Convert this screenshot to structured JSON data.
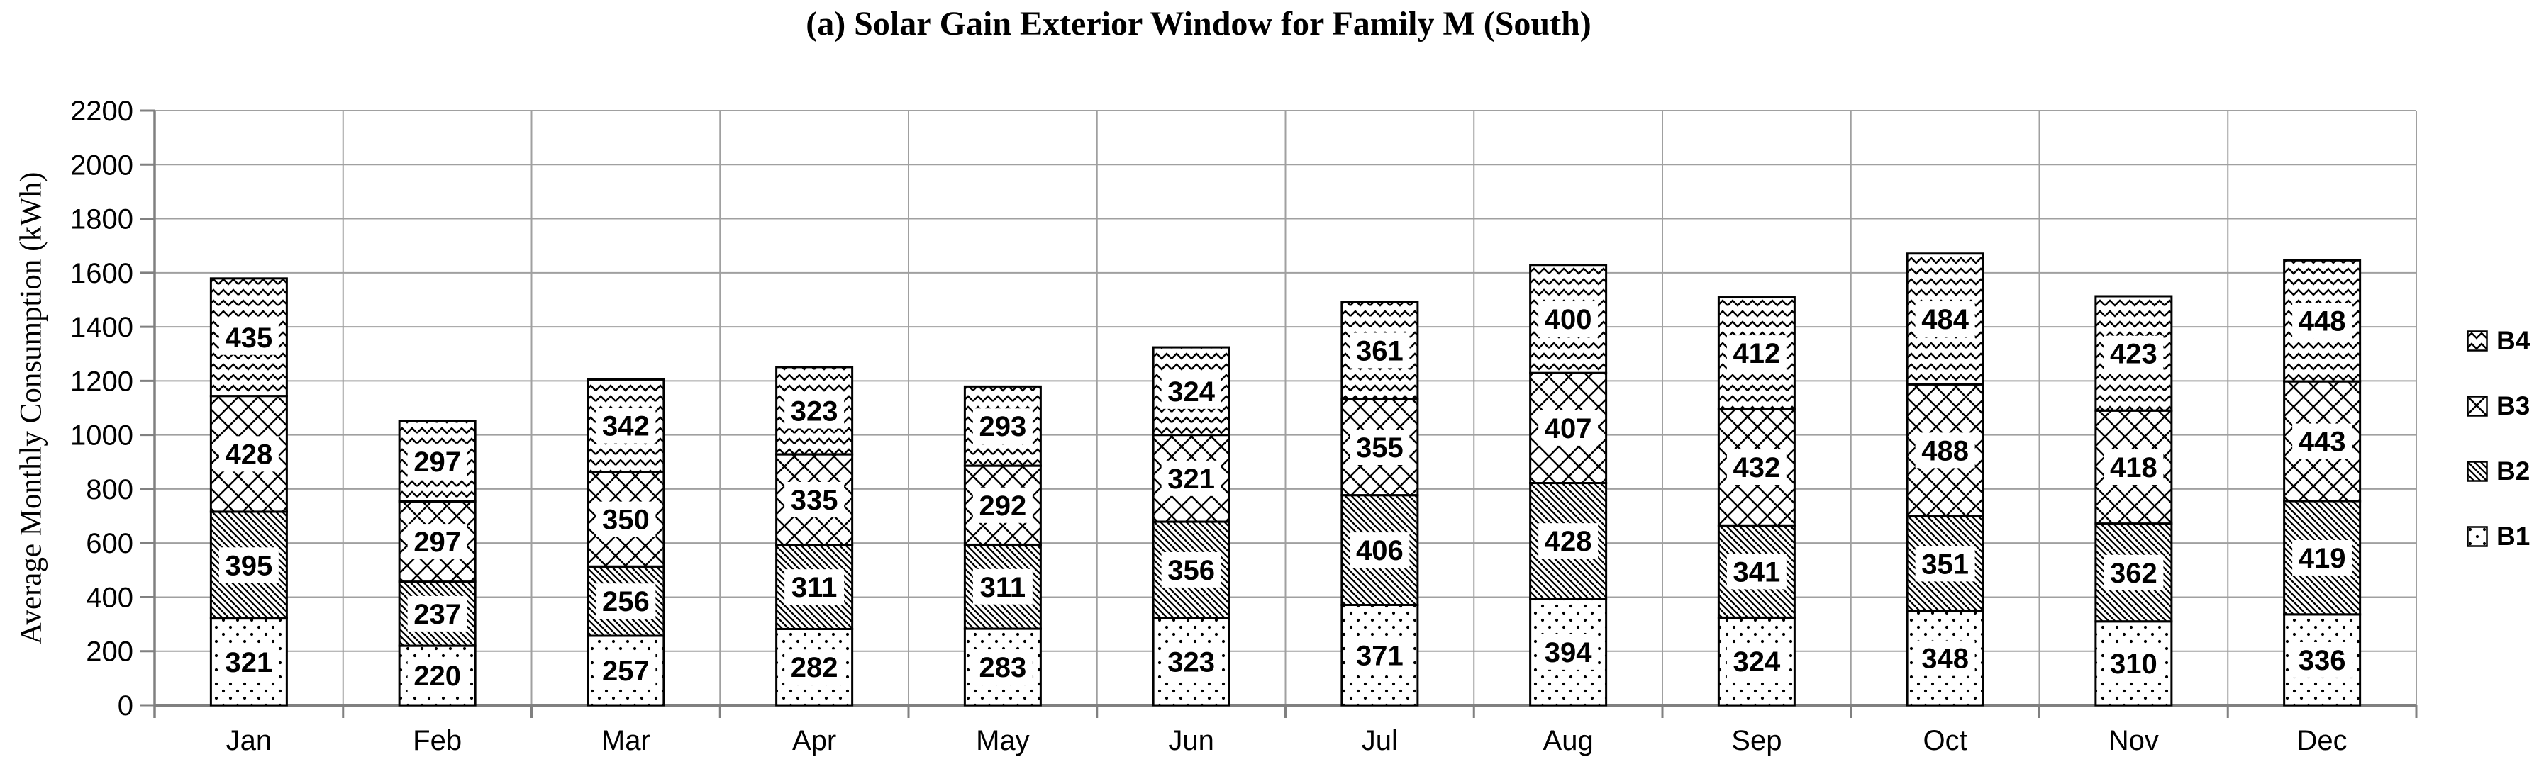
{
  "title": "(a) Solar Gain Exterior Window for Family M (South)",
  "y_axis_title": "Average Monthly Consumption (kWh)",
  "colors": {
    "background": "#ffffff",
    "bar_fill": "#ffffff",
    "bar_stroke": "#000000",
    "pattern_ink": "#000000",
    "gridline": "#a0a0a0",
    "axis": "#808080",
    "text": "#000000"
  },
  "chart_data": {
    "type": "bar",
    "stacked": true,
    "title": "(a) Solar Gain Exterior Window for Family M (South)",
    "xlabel": "",
    "ylabel": "Average Monthly Consumption (kWh)",
    "ylim": [
      0,
      2200
    ],
    "ytick_step": 200,
    "ytick_labels": [
      "0",
      "200",
      "400",
      "600",
      "800",
      "1000",
      "1200",
      "1400",
      "1600",
      "1800",
      "2000",
      "2200"
    ],
    "grid": true,
    "categories": [
      "Jan",
      "Feb",
      "Mar",
      "Apr",
      "May",
      "Jun",
      "Jul",
      "Aug",
      "Sep",
      "Oct",
      "Nov",
      "Dec"
    ],
    "series": [
      {
        "name": "B1",
        "pattern": "dots",
        "values": [
          321,
          220,
          257,
          282,
          283,
          323,
          371,
          394,
          324,
          348,
          310,
          336
        ]
      },
      {
        "name": "B2",
        "pattern": "diagonal-stripes",
        "values": [
          395,
          237,
          256,
          311,
          311,
          356,
          406,
          428,
          341,
          351,
          362,
          419
        ]
      },
      {
        "name": "B3",
        "pattern": "crosshatch",
        "values": [
          428,
          297,
          350,
          335,
          292,
          321,
          355,
          407,
          432,
          488,
          418,
          443
        ]
      },
      {
        "name": "B4",
        "pattern": "zigzag",
        "values": [
          435,
          297,
          342,
          323,
          293,
          324,
          361,
          400,
          412,
          484,
          423,
          448
        ]
      }
    ],
    "legend_position": "right",
    "legend_order": [
      "B4",
      "B3",
      "B2",
      "B1"
    ]
  }
}
